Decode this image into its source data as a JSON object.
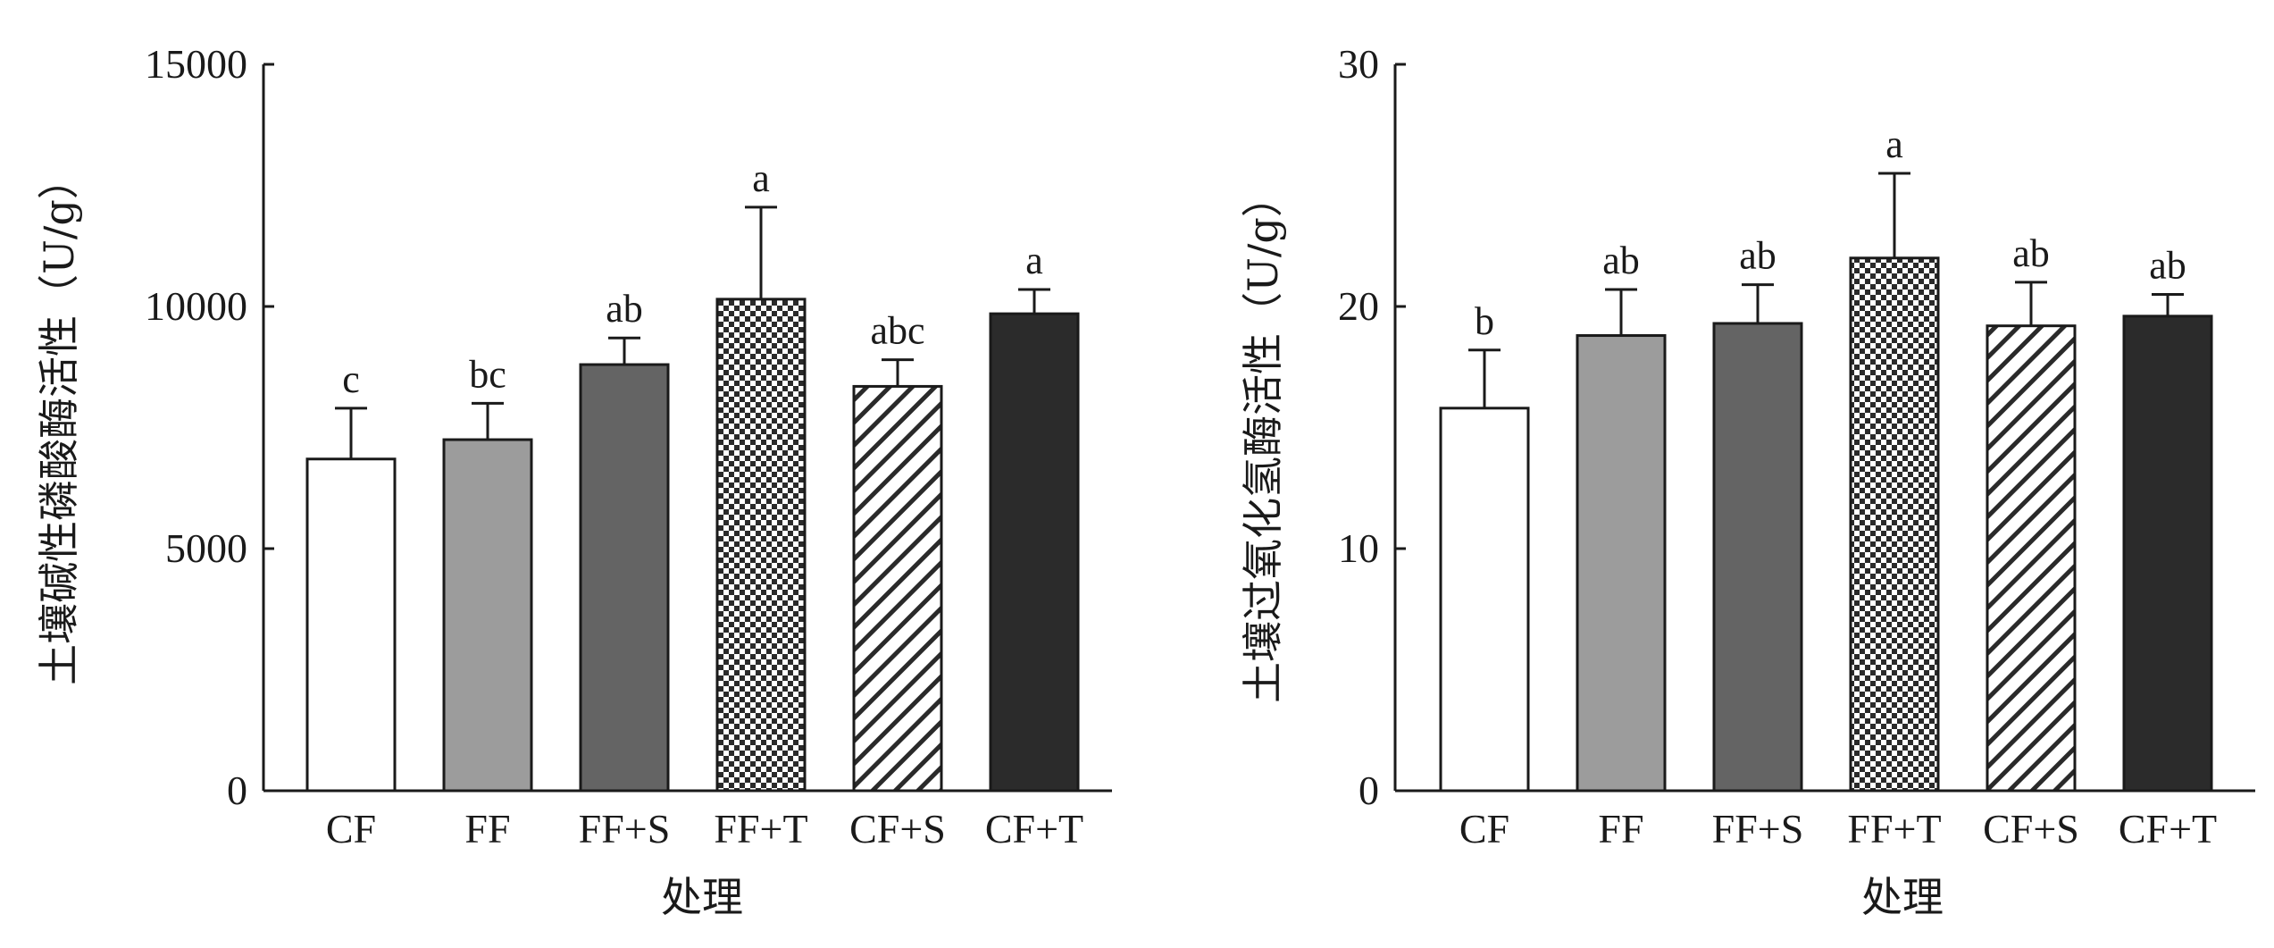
{
  "chart_data": [
    {
      "type": "bar",
      "xlabel": "处理",
      "ylabel": "土壤碱性磷酸酶活性（U/g）",
      "ylim": [
        0,
        15000
      ],
      "yticks": [
        "0",
        "5000",
        "10000",
        "15000"
      ],
      "categories": [
        "CF",
        "FF",
        "FF+S",
        "FF+T",
        "CF+S",
        "CF+T"
      ],
      "values": [
        6850,
        7250,
        8800,
        10150,
        8350,
        9850
      ],
      "errors": [
        1050,
        750,
        550,
        1900,
        550,
        500
      ],
      "significance": [
        "c",
        "bc",
        "ab",
        "a",
        "abc",
        "a"
      ],
      "patterns": [
        "white",
        "lightgray",
        "darkgray",
        "checker",
        "diagonal",
        "black"
      ]
    },
    {
      "type": "bar",
      "xlabel": "处理",
      "ylabel": "土壤过氧化氢酶活性（U/g）",
      "ylim": [
        0,
        30
      ],
      "yticks": [
        "0",
        "10",
        "20",
        "30"
      ],
      "categories": [
        "CF",
        "FF",
        "FF+S",
        "FF+T",
        "CF+S",
        "CF+T"
      ],
      "values": [
        15.8,
        18.8,
        19.3,
        22.0,
        19.2,
        19.6
      ],
      "errors": [
        2.4,
        1.9,
        1.6,
        3.5,
        1.8,
        0.9
      ],
      "significance": [
        "b",
        "ab",
        "ab",
        "a",
        "ab",
        "ab"
      ],
      "patterns": [
        "white",
        "lightgray",
        "darkgray",
        "checker",
        "diagonal",
        "black"
      ]
    }
  ]
}
